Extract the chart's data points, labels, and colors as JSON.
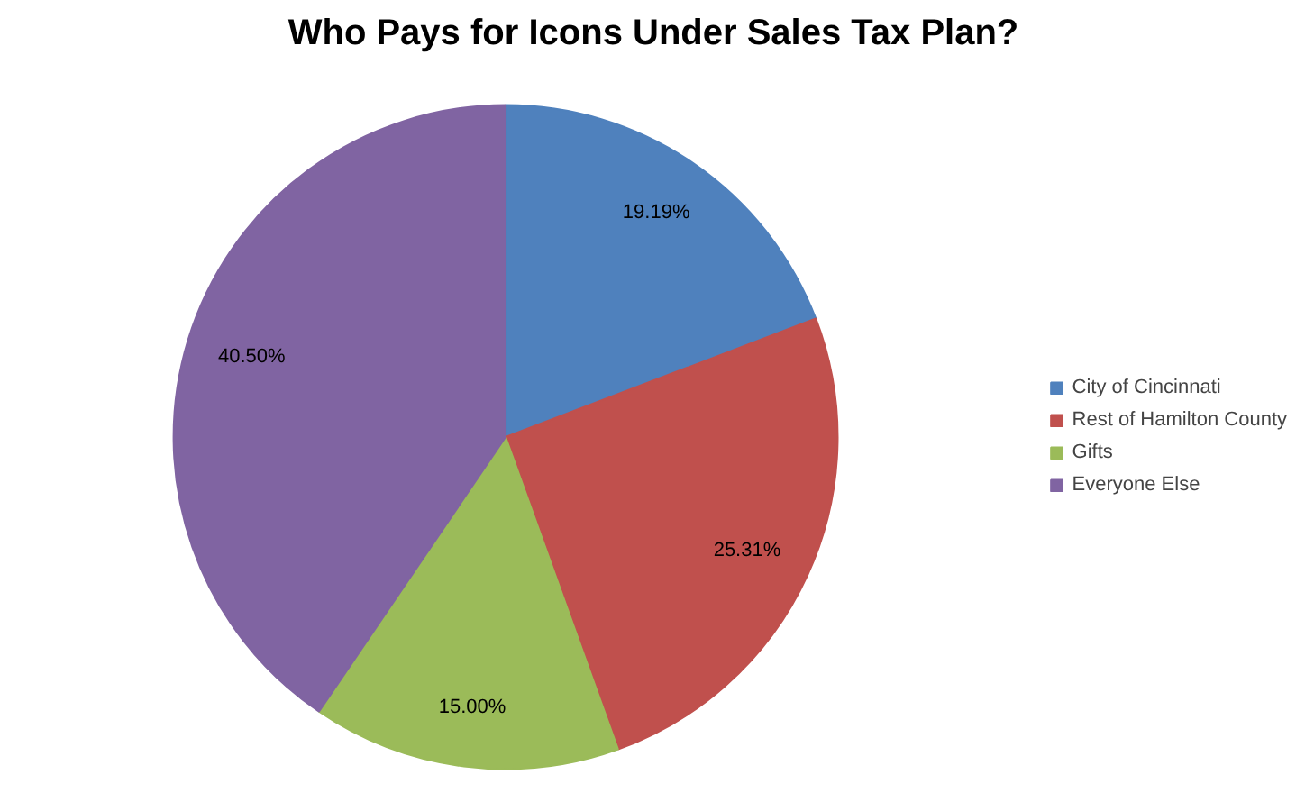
{
  "chart_data": {
    "type": "pie",
    "title": "Who Pays for Icons Under Sales Tax Plan?",
    "categories": [
      "City of Cincinnati",
      "Rest of Hamilton County",
      "Gifts",
      "Everyone Else"
    ],
    "values": [
      19.19,
      25.31,
      15.0,
      40.5
    ],
    "value_labels": [
      "19.19%",
      "25.31%",
      "15.00%",
      "40.50%"
    ],
    "colors": [
      "#4f81bd",
      "#c0504d",
      "#9bbb59",
      "#8064a2"
    ],
    "legend": "right"
  }
}
